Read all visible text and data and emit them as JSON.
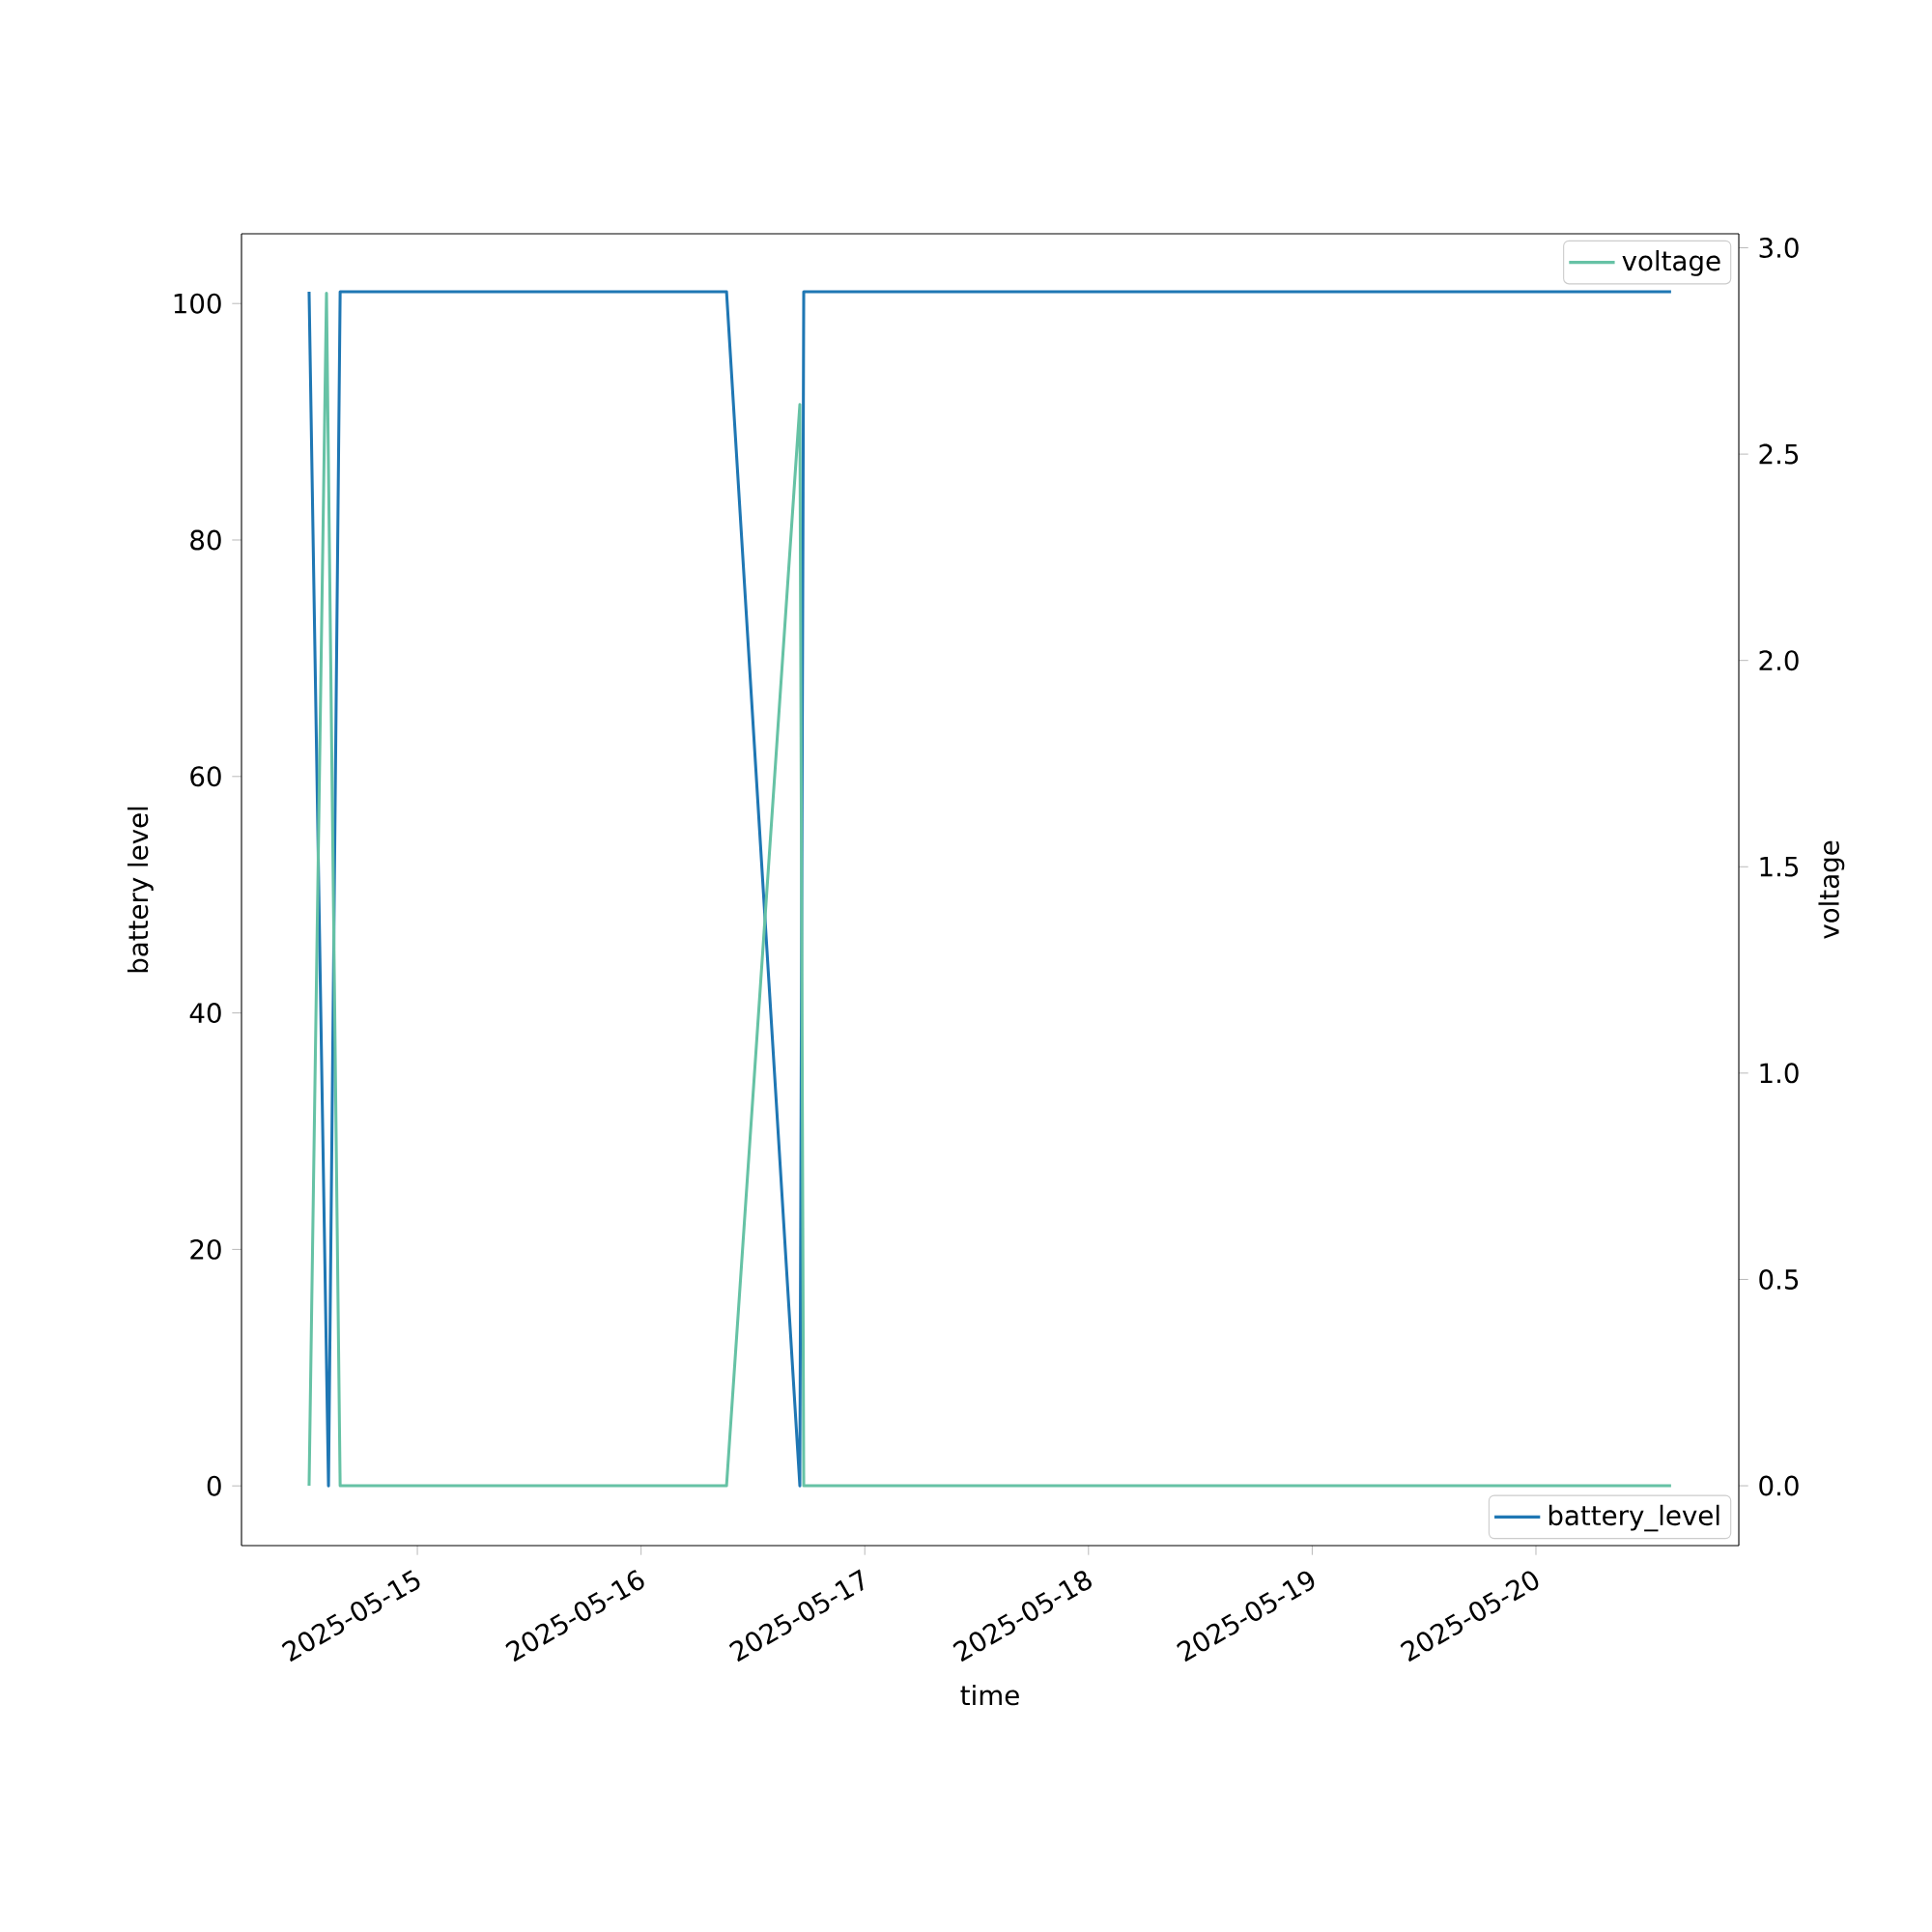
{
  "chart_data": {
    "type": "line",
    "xlabel": "time",
    "ylabel": "battery level",
    "y2label": "voltage",
    "xlim": [
      "2025-05-14T05:08",
      "2025-05-20T21:46"
    ],
    "ylim": [
      -5.05,
      105.9
    ],
    "y2lim": [
      -0.145,
      3.034
    ],
    "xticks": [
      "2025-05-15",
      "2025-05-16",
      "2025-05-17",
      "2025-05-18",
      "2025-05-19",
      "2025-05-20"
    ],
    "yticks": [
      0,
      20,
      40,
      60,
      80,
      100
    ],
    "y2ticks": [
      {
        "value": 0,
        "label": "0.0"
      },
      {
        "value": 0.5,
        "label": "0.5"
      },
      {
        "value": 1,
        "label": "1.0"
      },
      {
        "value": 1.5,
        "label": "1.5"
      },
      {
        "value": 2,
        "label": "2.0"
      },
      {
        "value": 2.5,
        "label": "2.5"
      },
      {
        "value": 3,
        "label": "3.0"
      }
    ],
    "grid": false,
    "legend": "right",
    "series": [
      {
        "name": "battery_level",
        "color": "#1f77b4",
        "axis": "y",
        "x": [
          "2025-05-14T12:23",
          "2025-05-14T14:28",
          "2025-05-14T15:43",
          "2025-05-16T09:10",
          "2025-05-16T17:02",
          "2025-05-16T17:27",
          "2025-05-20T14:30"
        ],
        "values": [
          101,
          0,
          101,
          101,
          0,
          101,
          101
        ]
      },
      {
        "name": "voltage",
        "color": "#66c2a5",
        "axis": "y2",
        "x": [
          "2025-05-14T12:23",
          "2025-05-14T14:15",
          "2025-05-14T15:43",
          "2025-05-16T09:10",
          "2025-05-16T17:02",
          "2025-05-16T17:27",
          "2025-05-20T14:30"
        ],
        "values": [
          0,
          2.89,
          0,
          0,
          2.62,
          0,
          0
        ]
      }
    ]
  }
}
